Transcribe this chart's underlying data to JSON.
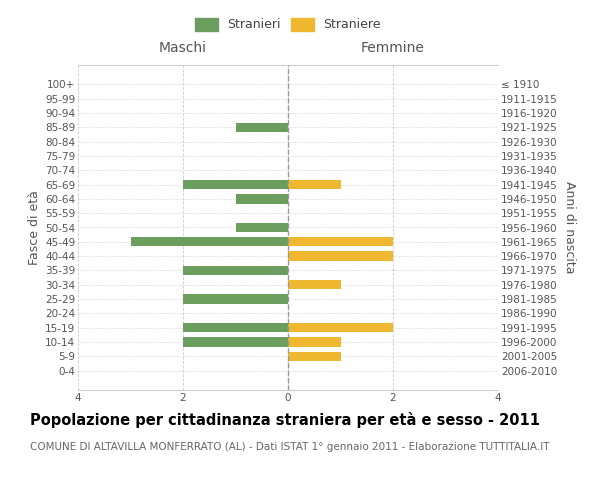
{
  "age_groups": [
    "0-4",
    "5-9",
    "10-14",
    "15-19",
    "20-24",
    "25-29",
    "30-34",
    "35-39",
    "40-44",
    "45-49",
    "50-54",
    "55-59",
    "60-64",
    "65-69",
    "70-74",
    "75-79",
    "80-84",
    "85-89",
    "90-94",
    "95-99",
    "100+"
  ],
  "birth_years": [
    "2006-2010",
    "2001-2005",
    "1996-2000",
    "1991-1995",
    "1986-1990",
    "1981-1985",
    "1976-1980",
    "1971-1975",
    "1966-1970",
    "1961-1965",
    "1956-1960",
    "1951-1955",
    "1946-1950",
    "1941-1945",
    "1936-1940",
    "1931-1935",
    "1926-1930",
    "1921-1925",
    "1916-1920",
    "1911-1915",
    "≤ 1910"
  ],
  "maschi": [
    0,
    0,
    2,
    2,
    0,
    2,
    0,
    2,
    0,
    3,
    1,
    0,
    1,
    2,
    0,
    0,
    0,
    1,
    0,
    0,
    0
  ],
  "femmine": [
    0,
    1,
    1,
    2,
    0,
    0,
    1,
    0,
    2,
    2,
    0,
    0,
    0,
    1,
    0,
    0,
    0,
    0,
    0,
    0,
    0
  ],
  "color_maschi": "#6b9e5e",
  "color_femmine": "#f0b730",
  "xlim": 4,
  "xticks": [
    -4,
    -2,
    0,
    2,
    4
  ],
  "xtick_labels": [
    "4",
    "2",
    "0",
    "2",
    "4"
  ],
  "title": "Popolazione per cittadinanza straniera per età e sesso - 2011",
  "subtitle": "COMUNE DI ALTAVILLA MONFERRATO (AL) - Dati ISTAT 1° gennaio 2011 - Elaborazione TUTTITALIA.IT",
  "ylabel_left": "Fasce di età",
  "ylabel_right": "Anni di nascita",
  "legend_male": "Stranieri",
  "legend_female": "Straniere",
  "maschi_label": "Maschi",
  "femmine_label": "Femmine",
  "background_color": "#ffffff",
  "grid_color": "#cccccc",
  "title_fontsize": 10.5,
  "subtitle_fontsize": 7.5,
  "axis_label_fontsize": 9,
  "tick_fontsize": 7.5,
  "legend_fontsize": 9,
  "bar_height": 0.65
}
